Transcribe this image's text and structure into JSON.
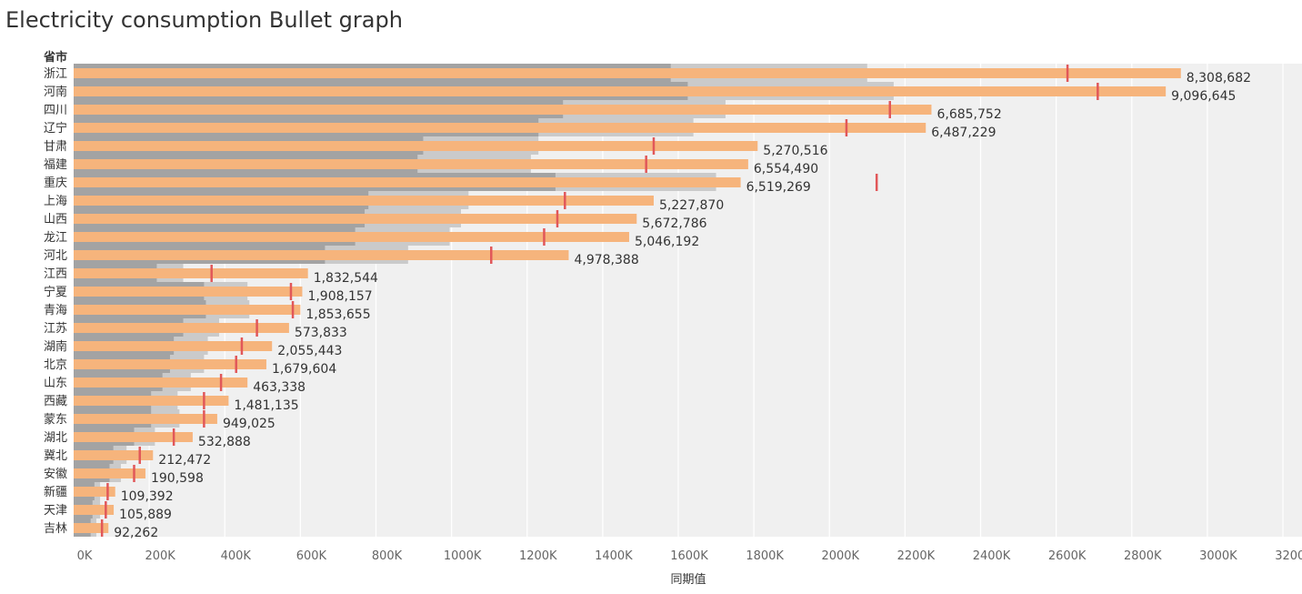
{
  "title": "Electricity consumption Bullet graph",
  "chart_data": {
    "type": "bar",
    "subtype": "bullet",
    "title": "Electricity consumption Bullet graph",
    "row_header": "省市",
    "xlabel": "同期值",
    "xlim": [
      0,
      3200000
    ],
    "xticks": [
      0,
      200000,
      400000,
      600000,
      800000,
      1000000,
      1200000,
      1400000,
      1600000,
      1800000,
      2000000,
      2200000,
      2400000,
      2600000,
      2800000,
      3000000,
      3200000
    ],
    "xtick_labels": [
      "0K",
      "200K",
      "400K",
      "600K",
      "800K",
      "1000K",
      "1200K",
      "1400K",
      "1600K",
      "1800K",
      "2000K",
      "2200K",
      "2400K",
      "2600K",
      "2800K",
      "3000K",
      "3200K"
    ],
    "gridlines": true,
    "colors": {
      "plot_background": "#f0f0f0",
      "band_dark": "#a3a3a3",
      "band_light": "#cacaca",
      "bar": "#f6b47c",
      "target": "#e15759",
      "grid": "#ffffff"
    },
    "categories": [
      "浙江",
      "河南",
      "四川",
      "辽宁",
      "甘肃",
      "福建",
      "重庆",
      "上海",
      "山西",
      "龙江",
      "河北",
      "江西",
      "宁夏",
      "青海",
      "江苏",
      "湖南",
      "北京",
      "山东",
      "西藏",
      "蒙东",
      "湖北",
      "冀北",
      "安徽",
      "新疆",
      "天津",
      "吉林"
    ],
    "series": [
      {
        "role": "bar",
        "values": [
          2930000,
          2890000,
          2270000,
          2255000,
          1810000,
          1785000,
          1765000,
          1535000,
          1490000,
          1470000,
          1310000,
          620000,
          605000,
          600000,
          570000,
          525000,
          510000,
          460000,
          410000,
          380000,
          315000,
          210000,
          190000,
          110000,
          106000,
          92000
        ]
      },
      {
        "role": "target",
        "values": [
          2630000,
          2710000,
          2160000,
          2045000,
          1535000,
          1515000,
          2125000,
          1300000,
          1280000,
          1245000,
          1105000,
          365000,
          575000,
          580000,
          485000,
          445000,
          430000,
          390000,
          345000,
          345000,
          265000,
          175000,
          160000,
          90000,
          85000,
          75000
        ]
      },
      {
        "role": "band_dark",
        "values": [
          1580000,
          1625000,
          1295000,
          1230000,
          925000,
          910000,
          1275000,
          780000,
          770000,
          745000,
          665000,
          220000,
          345000,
          350000,
          290000,
          265000,
          255000,
          235000,
          205000,
          205000,
          160000,
          105000,
          95000,
          55000,
          50000,
          45000
        ]
      },
      {
        "role": "band_light",
        "values": [
          2100000,
          2170000,
          1725000,
          1640000,
          1230000,
          1210000,
          1700000,
          1045000,
          1025000,
          995000,
          885000,
          290000,
          460000,
          465000,
          385000,
          355000,
          345000,
          310000,
          275000,
          280000,
          215000,
          140000,
          125000,
          70000,
          70000,
          60000
        ]
      }
    ],
    "labels": [
      "8,308,682",
      "9,096,645",
      "6,685,752",
      "6,487,229",
      "5,270,516",
      "6,554,490",
      "6,519,269",
      "5,227,870",
      "5,672,786",
      "5,046,192",
      "4,978,388",
      "1,832,544",
      "1,908,157",
      "1,853,655",
      "573,833",
      "2,055,443",
      "1,679,604",
      "463,338",
      "1,481,135",
      "949,025",
      "532,888",
      "212,472",
      "190,598",
      "109,392",
      "105,889",
      "92,262"
    ]
  }
}
